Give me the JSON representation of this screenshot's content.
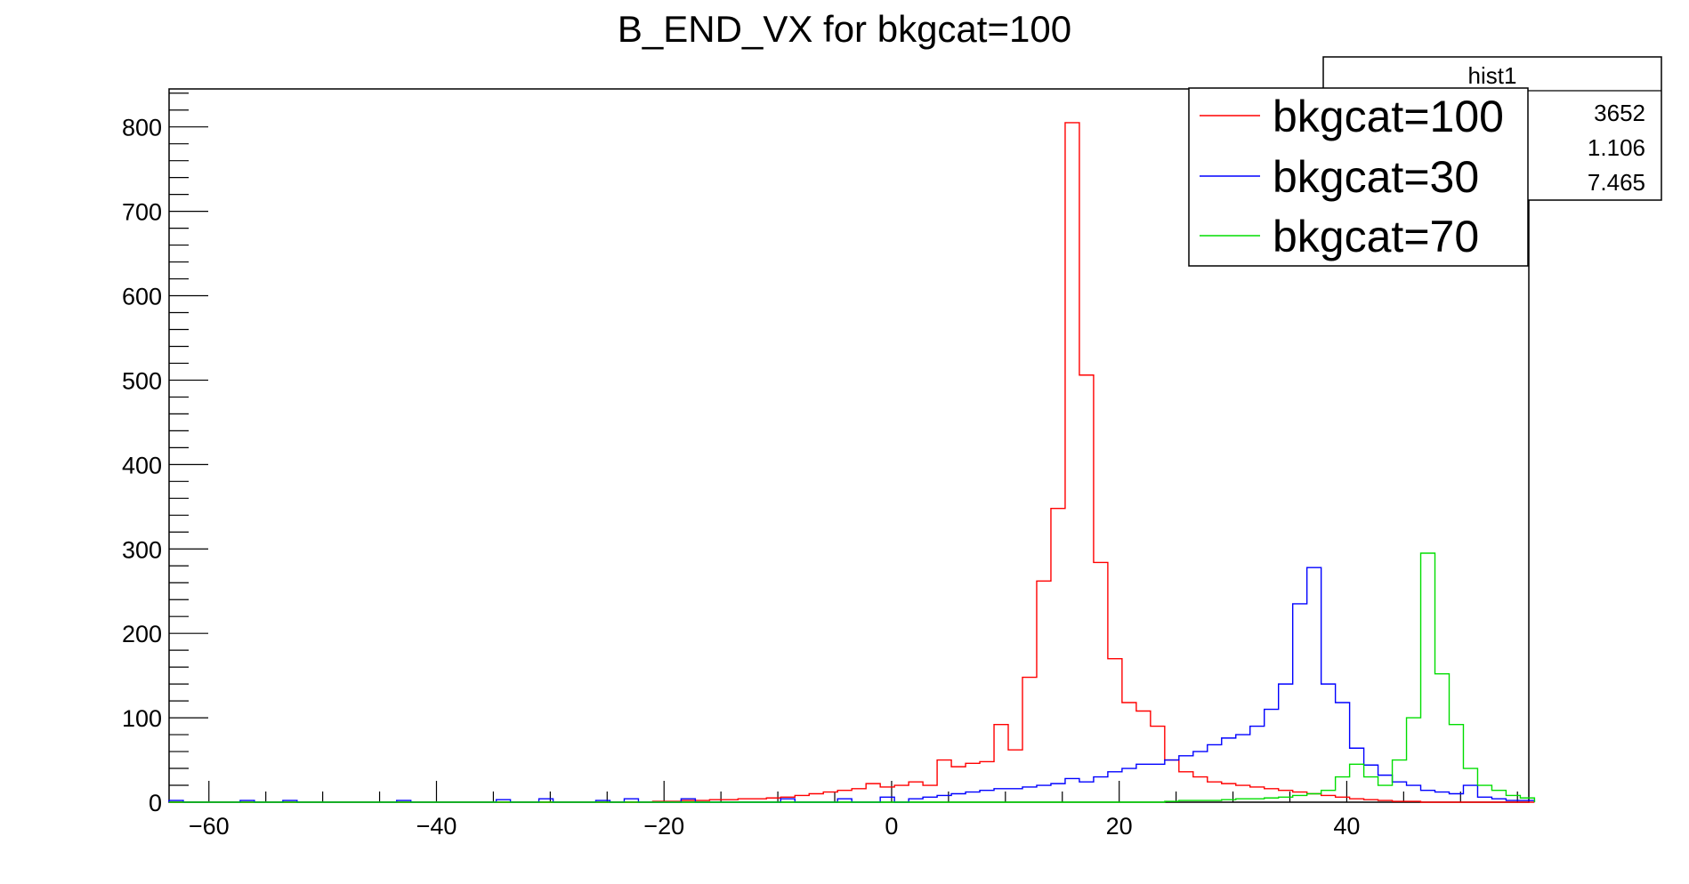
{
  "chart_data": {
    "type": "histogram",
    "title": "B_END_VX for bkgcat=100",
    "xlabel": "",
    "ylabel": "",
    "xlim": [
      -63.5,
      56
    ],
    "ylim": [
      0,
      845
    ],
    "x_ticks": [
      -60,
      -40,
      -20,
      0,
      20,
      40
    ],
    "x_tick_labels": [
      "−60",
      "−40",
      "−20",
      "0",
      "20",
      "40"
    ],
    "y_ticks": [
      0,
      100,
      200,
      300,
      400,
      500,
      600,
      700,
      800
    ],
    "y_tick_labels": [
      "0",
      "100",
      "200",
      "300",
      "400",
      "500",
      "600",
      "700",
      "800"
    ],
    "bin_start": -63.5,
    "bin_width": 1.25,
    "grid": false,
    "legend_position": "top-right",
    "series": [
      {
        "name": "bkgcat=100",
        "color": "#ff0000",
        "values": [
          0,
          0,
          0,
          0,
          0,
          0,
          0,
          0,
          0,
          0,
          0,
          0,
          0,
          0,
          0,
          0,
          0,
          0,
          0,
          0,
          0,
          0,
          0,
          0,
          0,
          0,
          0,
          0,
          0,
          0,
          0,
          0,
          0,
          0,
          1,
          1,
          2,
          2,
          3,
          3,
          4,
          4,
          5,
          6,
          8,
          10,
          12,
          14,
          16,
          22,
          18,
          20,
          24,
          20,
          50,
          42,
          46,
          48,
          92,
          62,
          148,
          262,
          348,
          805,
          506,
          284,
          170,
          118,
          108,
          90,
          50,
          36,
          30,
          24,
          22,
          20,
          18,
          16,
          14,
          12,
          10,
          8,
          6,
          4,
          3,
          2,
          1,
          1,
          0,
          0,
          0,
          0,
          0,
          0,
          0,
          0
        ]
      },
      {
        "name": "bkgcat=30",
        "color": "#0000ff",
        "values": [
          2,
          0,
          0,
          0,
          0,
          2,
          0,
          0,
          2,
          0,
          0,
          0,
          0,
          0,
          0,
          0,
          2,
          0,
          0,
          0,
          0,
          0,
          0,
          3,
          0,
          0,
          4,
          0,
          0,
          0,
          2,
          0,
          4,
          0,
          0,
          0,
          4,
          0,
          0,
          0,
          0,
          0,
          0,
          4,
          0,
          0,
          0,
          4,
          0,
          0,
          6,
          0,
          4,
          6,
          8,
          10,
          12,
          14,
          16,
          16,
          18,
          20,
          22,
          28,
          24,
          30,
          36,
          40,
          45,
          45,
          50,
          55,
          60,
          68,
          76,
          80,
          90,
          110,
          140,
          235,
          278,
          140,
          118,
          64,
          44,
          32,
          24,
          20,
          14,
          12,
          10,
          20,
          6,
          4,
          2,
          2
        ]
      },
      {
        "name": "bkgcat=70",
        "color": "#00dd00",
        "values": [
          0,
          0,
          0,
          0,
          0,
          0,
          0,
          0,
          0,
          0,
          0,
          0,
          0,
          0,
          0,
          0,
          0,
          0,
          0,
          0,
          0,
          0,
          0,
          0,
          0,
          0,
          0,
          0,
          0,
          0,
          0,
          0,
          0,
          0,
          0,
          0,
          0,
          0,
          0,
          0,
          0,
          0,
          0,
          0,
          0,
          0,
          0,
          0,
          0,
          0,
          0,
          0,
          0,
          0,
          0,
          0,
          0,
          0,
          0,
          0,
          0,
          0,
          0,
          0,
          0,
          0,
          0,
          0,
          0,
          0,
          1,
          2,
          2,
          2,
          3,
          4,
          4,
          5,
          6,
          8,
          10,
          14,
          30,
          45,
          30,
          20,
          50,
          100,
          295,
          152,
          92,
          40,
          20,
          14,
          8,
          5
        ]
      }
    ],
    "stats_box": {
      "title": "hist1",
      "values": [
        "3652",
        "1.106",
        "7.465"
      ]
    }
  }
}
